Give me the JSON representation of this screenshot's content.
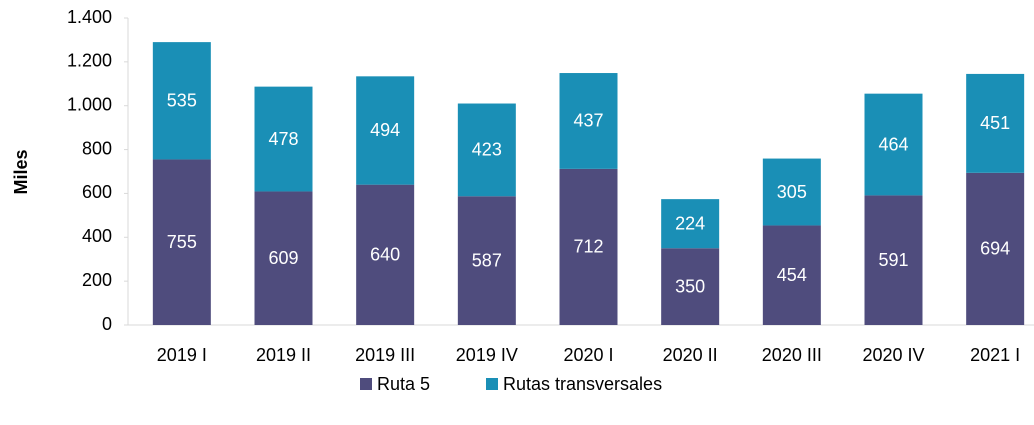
{
  "chart_data": {
    "type": "stacked_bar",
    "y_label": "Miles",
    "categories": [
      "2019 I",
      "2019 II",
      "2019 III",
      "2019 IV",
      "2020 I",
      "2020 II",
      "2020 III",
      "2020 IV",
      "2021 I"
    ],
    "series": [
      {
        "name": "Ruta 5",
        "color": "#4f4c7d",
        "values": [
          755,
          609,
          640,
          587,
          712,
          350,
          454,
          591,
          694
        ]
      },
      {
        "name": "Rutas transversales",
        "color": "#1a8fb6",
        "values": [
          535,
          478,
          494,
          423,
          437,
          224,
          305,
          464,
          451
        ]
      }
    ],
    "ylim": [
      0,
      1400
    ],
    "yticks": [
      0,
      200,
      400,
      600,
      800,
      {
        "value": 1000,
        "label": "1.000"
      },
      {
        "value": 1200,
        "label": "1.200"
      },
      {
        "value": 1400,
        "label": "1.400"
      }
    ],
    "legend": "bottom"
  }
}
